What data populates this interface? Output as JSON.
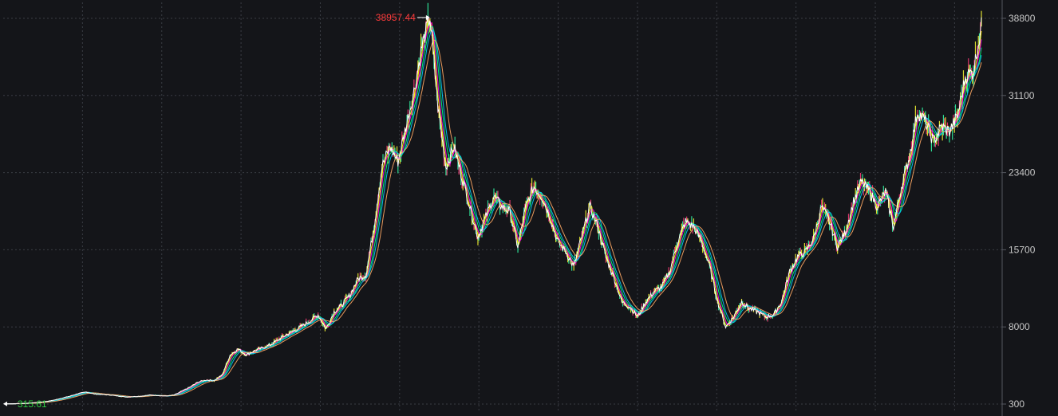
{
  "chart_data": {
    "type": "line",
    "title": "",
    "xlabel": "",
    "ylabel": "",
    "ylim": [
      300,
      38800
    ],
    "y_ticks": [
      {
        "value": 38800,
        "label": "38800"
      },
      {
        "value": 31100,
        "label": "31100"
      },
      {
        "value": 23400,
        "label": "23400"
      },
      {
        "value": 15700,
        "label": "15700"
      },
      {
        "value": 8000,
        "label": "8000"
      },
      {
        "value": 300,
        "label": "300"
      }
    ],
    "grid": true,
    "axis_position": "right",
    "high_marker": {
      "value": 38957.44,
      "label": "38957.44"
    },
    "low_marker": {
      "value": 315.61,
      "label": "315.61"
    },
    "series": [
      {
        "role": "price",
        "color": "#ffffff",
        "values": [
          315.61,
          340,
          360,
          400,
          470,
          560,
          700,
          900,
          1100,
          1350,
          1500,
          1300,
          1250,
          1200,
          1100,
          1000,
          1050,
          1100,
          1200,
          1150,
          1100,
          1200,
          1600,
          2000,
          2500,
          2700,
          2650,
          3200,
          5200,
          5800,
          5200,
          5600,
          5900,
          6200,
          6700,
          7200,
          7600,
          8100,
          8600,
          9200,
          7800,
          9500,
          10200,
          11200,
          12800,
          13200,
          18000,
          24000,
          26000,
          24500,
          28000,
          31500,
          36000,
          38957.44,
          30000,
          24000,
          26000,
          23000,
          20000,
          17000,
          19000,
          21000,
          20000,
          19500,
          16000,
          20000,
          22000,
          21000,
          19000,
          16500,
          15500,
          14000,
          17000,
          20000,
          18000,
          15000,
          13000,
          10500,
          10000,
          9000,
          10500,
          11500,
          12000,
          13500,
          16500,
          18500,
          18000,
          16500,
          14000,
          10500,
          8000,
          9000,
          10500,
          9800,
          9500,
          9000,
          9200,
          10500,
          13500,
          15000,
          15500,
          16800,
          20000,
          18500,
          16000,
          17500,
          20500,
          22500,
          21500,
          20000,
          21500,
          18000,
          22000,
          25000,
          29500,
          28500,
          26500,
          28000,
          27500,
          29000,
          33000,
          33500,
          38000
        ]
      },
      {
        "role": "ma5",
        "color": "#ffff00",
        "values": []
      },
      {
        "role": "ma10",
        "color": "#ff00ff",
        "values": []
      },
      {
        "role": "ma20",
        "color": "#00ff80",
        "values": []
      },
      {
        "role": "ma30",
        "color": "#00ccff",
        "values": []
      },
      {
        "role": "ma60",
        "color": "#ffaa66",
        "values": []
      }
    ],
    "colors": {
      "background": "#141519",
      "grid": "#3a3d44",
      "axis_text": "#c8c8c8",
      "high": "#ff3b3b",
      "low": "#2ecc40"
    }
  }
}
